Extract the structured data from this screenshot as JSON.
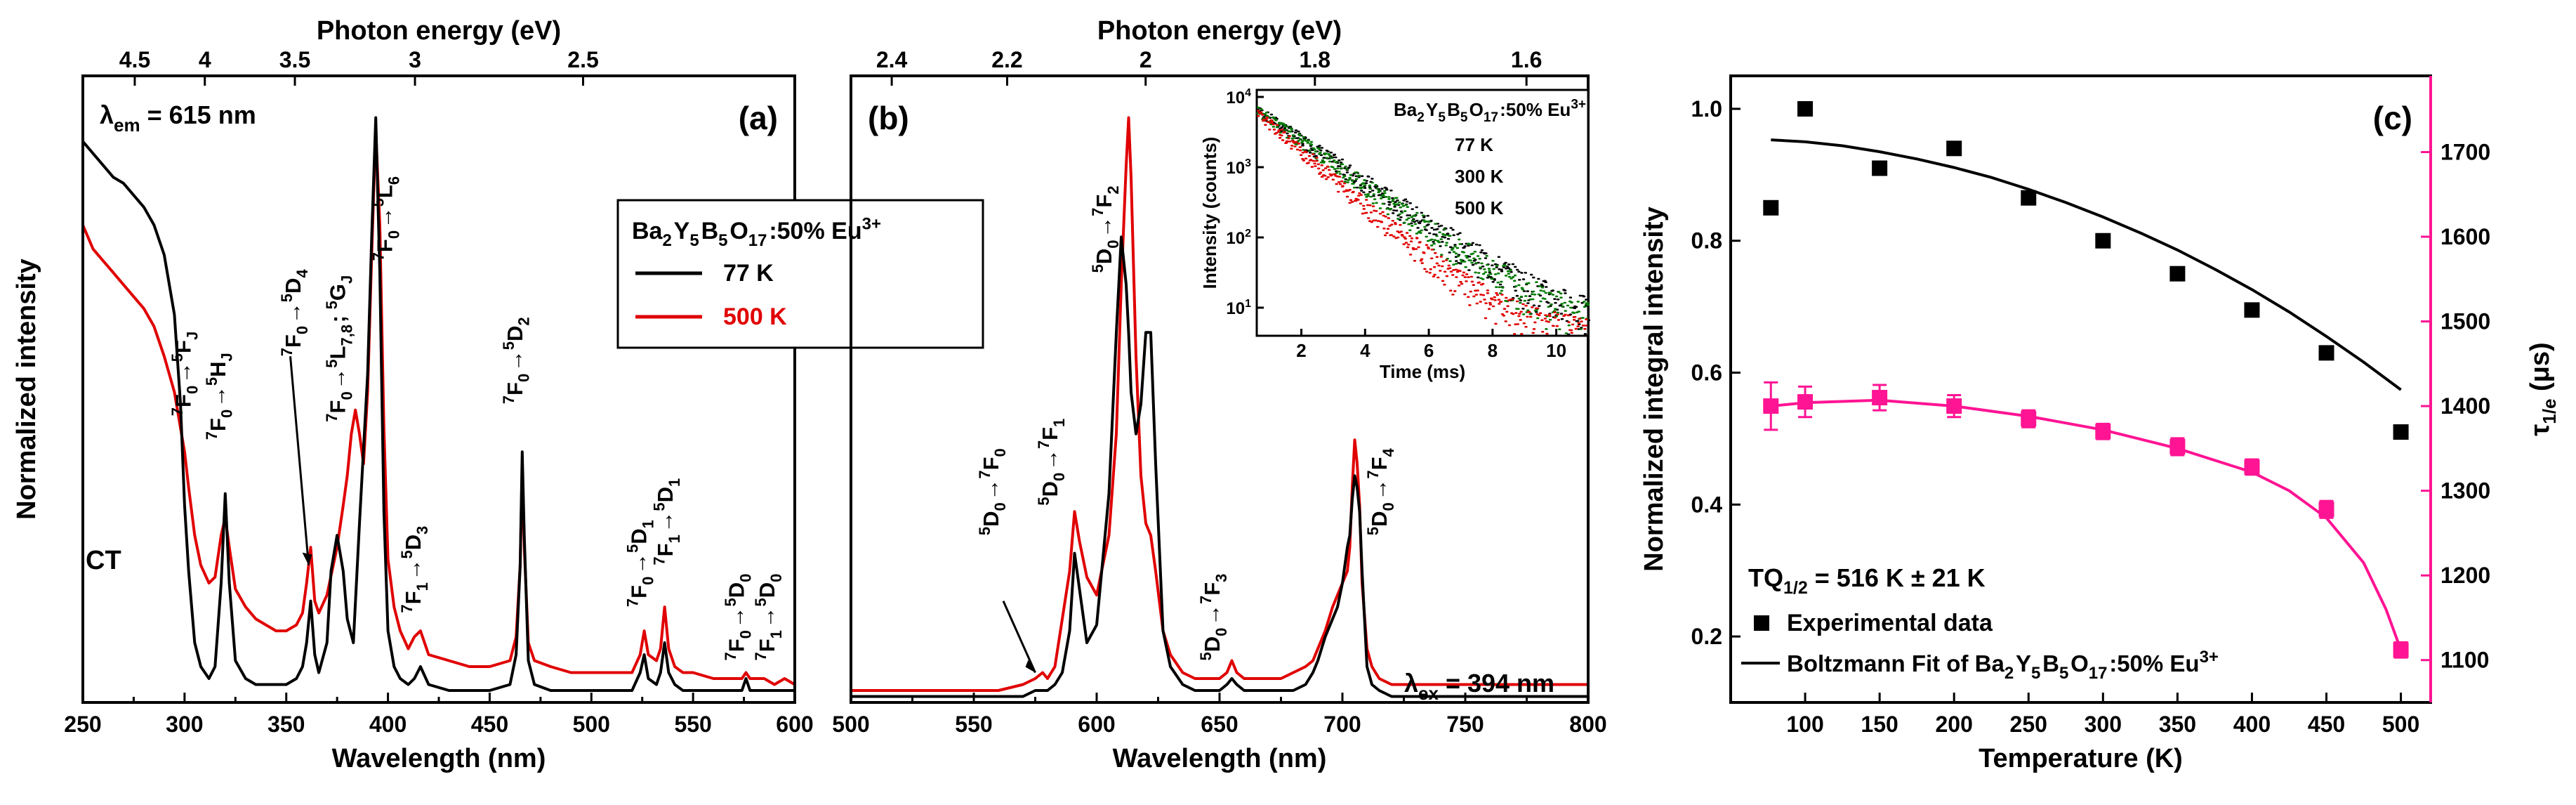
{
  "chart_data": [
    {
      "panel": "a",
      "type": "line",
      "panel_label": "(a)",
      "xlabel": "Wavelength (nm)",
      "ylabel": "Normalized intensity",
      "top_xlabel": "Photon energy (eV)",
      "xlim": [
        250,
        600
      ],
      "ylim": [
        0,
        1.05
      ],
      "x_ticks": [
        "250",
        "300",
        "350",
        "400",
        "450",
        "500",
        "550",
        "600"
      ],
      "top_ticks": [
        {
          "label": "4.5",
          "ev": 4.5
        },
        {
          "label": "4",
          "ev": 4.0
        },
        {
          "label": "3.5",
          "ev": 3.5
        },
        {
          "label": "3",
          "ev": 3.0
        },
        {
          "label": "2.5",
          "ev": 2.5
        }
      ],
      "em_label": "λem = 615 nm",
      "ct_label": "CT",
      "legend": {
        "title": "Ba2Y5B5O17:50% Eu3+",
        "entries": [
          {
            "name": "77 K",
            "color": "#000000"
          },
          {
            "name": "500 K",
            "color": "#e00000"
          }
        ]
      },
      "series": [
        {
          "name": "77 K",
          "color": "#000000",
          "x": [
            250,
            255,
            260,
            265,
            270,
            275,
            280,
            285,
            290,
            295,
            298,
            300,
            302,
            305,
            308,
            312,
            315,
            318,
            320,
            322,
            325,
            330,
            335,
            340,
            345,
            350,
            355,
            358,
            360,
            362,
            364,
            366,
            370,
            372,
            375,
            378,
            380,
            383,
            386,
            390,
            392,
            394,
            396,
            398,
            400,
            403,
            406,
            410,
            413,
            416,
            420,
            430,
            440,
            450,
            460,
            463,
            465,
            466,
            467,
            469,
            472,
            480,
            490,
            500,
            510,
            520,
            524,
            526,
            528,
            532,
            534,
            536,
            538,
            541,
            545,
            550,
            560,
            570,
            574,
            576,
            578,
            580,
            585,
            590,
            595,
            600
          ],
          "y": [
            0.94,
            0.92,
            0.9,
            0.88,
            0.87,
            0.85,
            0.83,
            0.8,
            0.75,
            0.65,
            0.5,
            0.33,
            0.22,
            0.1,
            0.06,
            0.04,
            0.06,
            0.2,
            0.35,
            0.2,
            0.07,
            0.04,
            0.03,
            0.03,
            0.03,
            0.03,
            0.04,
            0.06,
            0.1,
            0.17,
            0.08,
            0.05,
            0.1,
            0.22,
            0.28,
            0.22,
            0.14,
            0.1,
            0.3,
            0.55,
            0.78,
            0.98,
            0.72,
            0.32,
            0.12,
            0.06,
            0.04,
            0.03,
            0.04,
            0.06,
            0.03,
            0.02,
            0.02,
            0.02,
            0.03,
            0.08,
            0.23,
            0.42,
            0.28,
            0.07,
            0.03,
            0.02,
            0.02,
            0.02,
            0.02,
            0.02,
            0.05,
            0.08,
            0.04,
            0.03,
            0.05,
            0.1,
            0.05,
            0.03,
            0.02,
            0.02,
            0.02,
            0.02,
            0.02,
            0.04,
            0.02,
            0.02,
            0.02,
            0.02,
            0.02,
            0.02
          ]
        },
        {
          "name": "500 K",
          "color": "#e00000",
          "x": [
            250,
            255,
            260,
            265,
            270,
            275,
            280,
            285,
            290,
            295,
            300,
            302,
            305,
            308,
            312,
            315,
            318,
            320,
            322,
            325,
            330,
            335,
            340,
            345,
            350,
            355,
            358,
            360,
            362,
            364,
            366,
            370,
            375,
            378,
            380,
            382,
            384,
            386,
            388,
            390,
            392,
            394,
            396,
            398,
            400,
            403,
            406,
            410,
            413,
            416,
            420,
            430,
            440,
            450,
            460,
            463,
            465,
            466,
            467,
            469,
            472,
            480,
            490,
            500,
            510,
            520,
            524,
            526,
            528,
            532,
            534,
            536,
            538,
            541,
            545,
            550,
            560,
            570,
            574,
            576,
            578,
            580,
            585,
            590,
            595,
            600
          ],
          "y": [
            0.8,
            0.76,
            0.74,
            0.72,
            0.7,
            0.68,
            0.66,
            0.63,
            0.58,
            0.52,
            0.42,
            0.36,
            0.28,
            0.23,
            0.2,
            0.21,
            0.28,
            0.31,
            0.26,
            0.19,
            0.16,
            0.14,
            0.13,
            0.12,
            0.12,
            0.13,
            0.15,
            0.2,
            0.26,
            0.17,
            0.15,
            0.18,
            0.26,
            0.33,
            0.38,
            0.45,
            0.49,
            0.45,
            0.4,
            0.52,
            0.75,
            0.96,
            0.8,
            0.46,
            0.24,
            0.16,
            0.12,
            0.09,
            0.11,
            0.12,
            0.08,
            0.07,
            0.06,
            0.06,
            0.07,
            0.11,
            0.23,
            0.4,
            0.26,
            0.1,
            0.07,
            0.06,
            0.05,
            0.05,
            0.05,
            0.05,
            0.08,
            0.12,
            0.08,
            0.07,
            0.09,
            0.16,
            0.09,
            0.06,
            0.05,
            0.05,
            0.04,
            0.04,
            0.04,
            0.05,
            0.04,
            0.04,
            0.04,
            0.03,
            0.04,
            0.03
          ]
        }
      ],
      "annotations": [
        {
          "main": "7F0→5FJ",
          "wl": 303,
          "y": 0.48
        },
        {
          "main": "7F0→5HJ",
          "wl": 320,
          "y": 0.44
        },
        {
          "main": "7F0→5D4",
          "wl": 357,
          "y": 0.58
        },
        {
          "main": "7F0→5L7,8; 5GJ",
          "wl": 379,
          "y": 0.47
        },
        {
          "main": "7F0→5L6",
          "wl": 402,
          "y": 0.74
        },
        {
          "main": "7F1→5D3",
          "wl": 416,
          "y": 0.15
        },
        {
          "main": "7F0→5D2",
          "wl": 466,
          "y": 0.5
        },
        {
          "main": "7F0→5D1",
          "wl": 527,
          "y": 0.16
        },
        {
          "main": "7F1→5D1",
          "wl": 540,
          "y": 0.23
        },
        {
          "main": "7F0→5D0",
          "wl": 575,
          "y": 0.07
        },
        {
          "main": "7F1→5D0",
          "wl": 590,
          "y": 0.07
        }
      ]
    },
    {
      "panel": "b",
      "type": "line",
      "panel_label": "(b)",
      "xlabel": "Wavelength (nm)",
      "top_xlabel": "Photon energy (eV)",
      "xlim": [
        500,
        800
      ],
      "ylim": [
        0,
        1.05
      ],
      "x_ticks": [
        "500",
        "550",
        "600",
        "650",
        "700",
        "750",
        "800"
      ],
      "top_ticks": [
        {
          "label": "2.4",
          "ev": 2.4
        },
        {
          "label": "2.2",
          "ev": 2.2
        },
        {
          "label": "2",
          "ev": 2.0
        },
        {
          "label": "1.8",
          "ev": 1.8
        },
        {
          "label": "1.6",
          "ev": 1.6
        }
      ],
      "ex_label": "λex = 394 nm",
      "series": [
        {
          "name": "77 K",
          "color": "#000000",
          "x": [
            500,
            520,
            540,
            560,
            570,
            575,
            578,
            580,
            583,
            586,
            589,
            591,
            593,
            596,
            600,
            605,
            608,
            610,
            612,
            613,
            614,
            616,
            618,
            620,
            622,
            624,
            627,
            630,
            635,
            640,
            645,
            650,
            653,
            655,
            657,
            660,
            665,
            670,
            675,
            680,
            685,
            688,
            690,
            693,
            696,
            698,
            700,
            702,
            703,
            704,
            705,
            706,
            707,
            708,
            710,
            712,
            715,
            720,
            730,
            740,
            750,
            760,
            780,
            800
          ],
          "y": [
            0.01,
            0.01,
            0.01,
            0.01,
            0.01,
            0.02,
            0.02,
            0.02,
            0.03,
            0.05,
            0.12,
            0.25,
            0.19,
            0.1,
            0.13,
            0.35,
            0.62,
            0.78,
            0.7,
            0.62,
            0.52,
            0.45,
            0.5,
            0.62,
            0.62,
            0.4,
            0.12,
            0.06,
            0.03,
            0.02,
            0.02,
            0.02,
            0.03,
            0.04,
            0.03,
            0.02,
            0.02,
            0.02,
            0.02,
            0.02,
            0.03,
            0.05,
            0.07,
            0.11,
            0.14,
            0.16,
            0.2,
            0.26,
            0.28,
            0.34,
            0.38,
            0.36,
            0.32,
            0.22,
            0.06,
            0.03,
            0.02,
            0.01,
            0.01,
            0.01,
            0.01,
            0.01,
            0.01,
            0.01
          ]
        },
        {
          "name": "500 K",
          "color": "#e00000",
          "x": [
            500,
            520,
            540,
            560,
            570,
            575,
            578,
            580,
            583,
            586,
            589,
            591,
            593,
            596,
            600,
            605,
            608,
            610,
            612,
            613,
            614,
            616,
            618,
            620,
            622,
            624,
            627,
            630,
            635,
            640,
            645,
            650,
            653,
            655,
            657,
            660,
            665,
            670,
            675,
            680,
            685,
            688,
            690,
            693,
            696,
            698,
            700,
            702,
            703,
            704,
            705,
            706,
            707,
            708,
            710,
            712,
            715,
            720,
            730,
            740,
            750,
            760,
            780,
            800
          ],
          "y": [
            0.02,
            0.02,
            0.02,
            0.02,
            0.03,
            0.04,
            0.05,
            0.04,
            0.06,
            0.14,
            0.22,
            0.32,
            0.27,
            0.21,
            0.18,
            0.28,
            0.45,
            0.7,
            0.9,
            0.98,
            0.88,
            0.58,
            0.38,
            0.3,
            0.28,
            0.22,
            0.12,
            0.08,
            0.05,
            0.04,
            0.04,
            0.04,
            0.05,
            0.07,
            0.05,
            0.04,
            0.04,
            0.04,
            0.04,
            0.05,
            0.06,
            0.07,
            0.09,
            0.12,
            0.16,
            0.18,
            0.2,
            0.22,
            0.26,
            0.36,
            0.44,
            0.4,
            0.33,
            0.2,
            0.09,
            0.06,
            0.04,
            0.03,
            0.03,
            0.03,
            0.03,
            0.03,
            0.03,
            0.03
          ]
        }
      ],
      "annotations": [
        {
          "main": "5D0→7F0",
          "wl": 560,
          "y": 0.28
        },
        {
          "main": "5D0→7F1",
          "wl": 584,
          "y": 0.33
        },
        {
          "main": "5D0→7F2",
          "wl": 606,
          "y": 0.72
        },
        {
          "main": "5D0→7F3",
          "wl": 650,
          "y": 0.07
        },
        {
          "main": "5D0→7F4",
          "wl": 718,
          "y": 0.28
        }
      ],
      "inset": {
        "type": "scatter",
        "title": "Ba2Y5B5O17:50% Eu3+",
        "xlabel": "Time (ms)",
        "ylabel": "Intensity (counts)",
        "xlim": [
          0.6,
          11
        ],
        "ylim_log": [
          0.6,
          4.1
        ],
        "x_ticks": [
          "2",
          "4",
          "6",
          "8",
          "10"
        ],
        "y_ticks": [
          {
            "label": "10^1",
            "exp": 1
          },
          {
            "label": "10^2",
            "exp": 2
          },
          {
            "label": "10^3",
            "exp": 3
          },
          {
            "label": "10^4",
            "exp": 4
          }
        ],
        "series": [
          {
            "name": "77 K",
            "color": "#000000",
            "tau_ms": 1.42,
            "i0": 10000
          },
          {
            "name": "300 K",
            "color": "#007a00",
            "tau_ms": 1.37,
            "i0": 10000
          },
          {
            "name": "500 K",
            "color": "#e00000",
            "tau_ms": 1.12,
            "i0": 10000
          }
        ]
      }
    },
    {
      "panel": "c",
      "type": "scatter",
      "panel_label": "(c)",
      "xlabel": "Temperature (K)",
      "ylabel": "Normalized integral intensity",
      "ylabel_right": "τ1/e (μs)",
      "xlim": [
        50,
        520
      ],
      "ylim": [
        0.1,
        1.05
      ],
      "ylim_right": [
        1050,
        1790
      ],
      "x_ticks": [
        "100",
        "150",
        "200",
        "250",
        "300",
        "350",
        "400",
        "450",
        "500"
      ],
      "y_ticks": [
        "0.2",
        "0.4",
        "0.6",
        "0.8",
        "1.0"
      ],
      "y_ticks_right": [
        "1100",
        "1200",
        "1300",
        "1400",
        "1500",
        "1600",
        "1700"
      ],
      "tq_label": "TQ1/2 = 516 K ± 21 K",
      "legend": {
        "entries": [
          {
            "name": "Experimental data",
            "kind": "marker"
          },
          {
            "name": "Boltzmann Fit of Ba2Y5B5O17:50% Eu3+",
            "kind": "line"
          }
        ]
      },
      "series": [
        {
          "name": "Normalized integral intensity",
          "color": "#000000",
          "x": [
            77,
            100,
            150,
            200,
            250,
            300,
            350,
            400,
            450,
            500
          ],
          "y": [
            0.85,
            1.0,
            0.91,
            0.94,
            0.865,
            0.8,
            0.75,
            0.695,
            0.63,
            0.51
          ]
        },
        {
          "name": "Boltzmann Fit",
          "color": "#000000",
          "x": [
            77,
            100,
            125,
            150,
            175,
            200,
            225,
            250,
            275,
            300,
            325,
            350,
            375,
            400,
            425,
            450,
            475,
            500
          ],
          "y": [
            0.953,
            0.95,
            0.944,
            0.935,
            0.924,
            0.911,
            0.896,
            0.878,
            0.858,
            0.836,
            0.812,
            0.786,
            0.757,
            0.726,
            0.692,
            0.655,
            0.616,
            0.574
          ]
        },
        {
          "name": "τ1/e",
          "color": "#ff1493",
          "x": [
            77,
            100,
            150,
            200,
            250,
            300,
            350,
            400,
            450,
            500
          ],
          "y": [
            1400,
            1405,
            1410,
            1400,
            1385,
            1370,
            1352,
            1328,
            1278,
            1112
          ],
          "err": [
            28,
            18,
            15,
            13,
            10,
            9,
            10,
            9,
            10,
            9
          ]
        },
        {
          "name": "τ1/e fit",
          "color": "#ff1493",
          "x": [
            77,
            100,
            150,
            200,
            250,
            300,
            350,
            400,
            425,
            450,
            475,
            490,
            500
          ],
          "y": [
            1400,
            1404,
            1407,
            1400,
            1388,
            1372,
            1350,
            1322,
            1300,
            1268,
            1215,
            1160,
            1112
          ]
        }
      ]
    }
  ]
}
